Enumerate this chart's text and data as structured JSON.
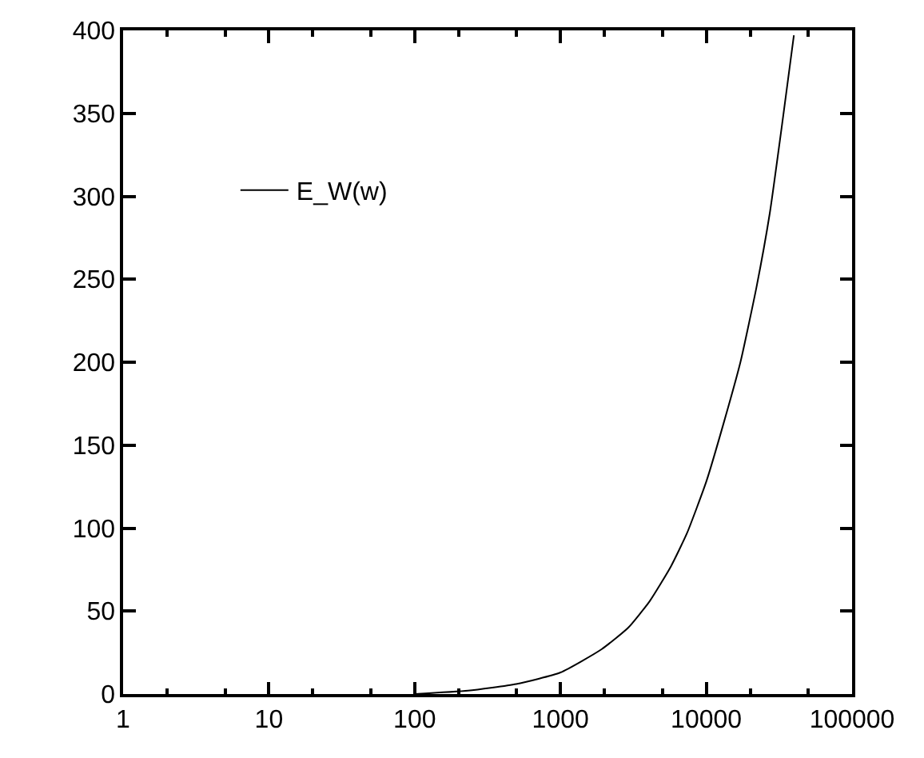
{
  "chart_data": {
    "type": "line",
    "log": "x",
    "x": [
      100,
      232,
      497,
      1000,
      1914,
      2916,
      4093,
      5730,
      7380,
      10000,
      13330,
      17150,
      22080,
      27290,
      33660,
      39900
    ],
    "series": [
      {
        "name": "E_W(w)",
        "color": "#000000",
        "values": [
          0,
          2,
          6,
          13,
          27,
          40,
          56,
          77,
          97,
          128,
          165,
          200,
          245,
          290,
          348,
          397
        ]
      }
    ],
    "xlim": [
      1,
      100000
    ],
    "xticks": [
      1,
      {
        "value": 2,
        "label": null
      },
      {
        "value": 5,
        "label": null
      },
      10,
      {
        "value": 20,
        "label": null
      },
      {
        "value": 50,
        "label": null
      },
      100,
      {
        "value": 200,
        "label": null
      },
      {
        "value": 500,
        "label": null
      },
      1000,
      {
        "value": 2000,
        "label": null
      },
      {
        "value": 5000,
        "label": null
      },
      10000,
      {
        "value": 20000,
        "label": null
      },
      {
        "value": 50000,
        "label": null
      },
      100000
    ],
    "ylim": [
      0,
      400
    ],
    "yticks": [
      0,
      50,
      100,
      150,
      200,
      250,
      300,
      350,
      400
    ],
    "legend": "top left",
    "marker": "none",
    "line_style": "solid"
  }
}
